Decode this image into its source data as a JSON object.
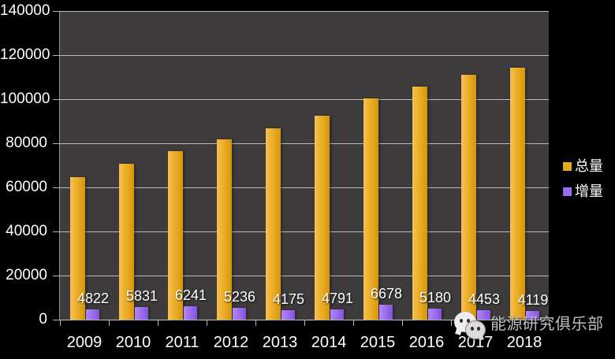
{
  "chart_data": {
    "type": "bar",
    "title": "",
    "xlabel": "",
    "ylabel": "",
    "categories": [
      "2009",
      "2010",
      "2011",
      "2012",
      "2013",
      "2014",
      "2015",
      "2016",
      "2017",
      "2018"
    ],
    "series": [
      {
        "name": "总量",
        "color": "#e7a71e",
        "values": [
          64600,
          70800,
          76500,
          81800,
          86800,
          92400,
          100400,
          105700,
          111200,
          114300
        ],
        "data_labels_shown": false
      },
      {
        "name": "增量",
        "color": "#9a6bec",
        "values": [
          4822,
          5831,
          6241,
          5236,
          4175,
          4791,
          6678,
          5180,
          4453,
          4119
        ],
        "data_labels_shown": true
      }
    ],
    "ylim": [
      0,
      140000
    ],
    "y_ticks": [
      0,
      20000,
      40000,
      60000,
      80000,
      100000,
      120000,
      140000
    ],
    "grid": "horizontal",
    "legend_position": "right",
    "colors": {
      "page_background": "#000000",
      "plot_background": "#3e3b3c",
      "gridline": "#cdcacd",
      "text": "#ffffff"
    }
  },
  "legend": {
    "items": [
      {
        "label": "总量",
        "color": "#e7a71e"
      },
      {
        "label": "增量",
        "color": "#9a6bec"
      }
    ]
  },
  "watermark": {
    "icon": "wechat-icon",
    "text": "能源研究俱乐部"
  }
}
